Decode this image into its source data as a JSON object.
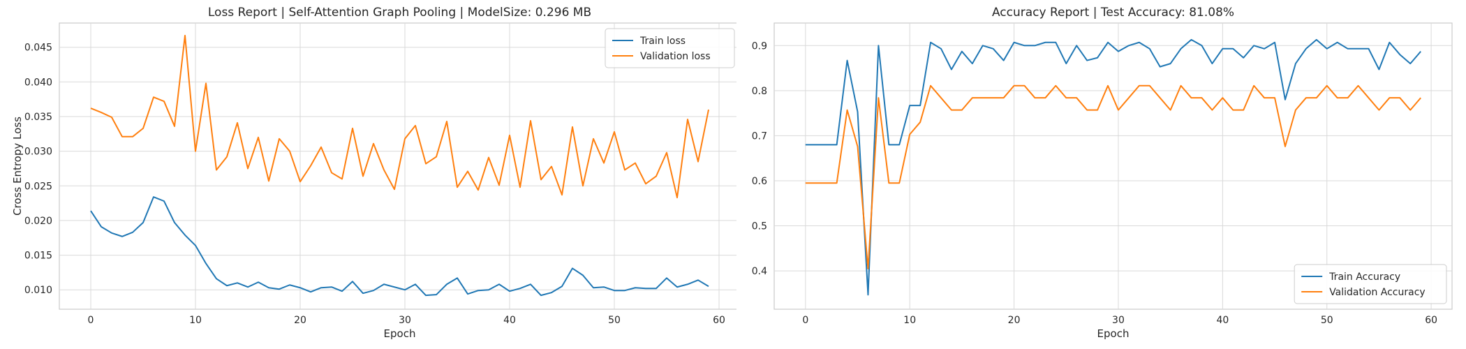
{
  "colors": {
    "train": "#1f77b4",
    "validation": "#ff7f0e"
  },
  "chart_data": [
    {
      "type": "line",
      "title": "Loss Report | Self-Attention Graph Pooling | ModelSize: 0.296 MB",
      "xlabel": "Epoch",
      "ylabel": "Cross Entropy Loss",
      "xlim": [
        -3,
        62
      ],
      "ylim": [
        0.0072,
        0.0485
      ],
      "xticks": [
        0,
        10,
        20,
        30,
        40,
        50,
        60
      ],
      "xtick_labels": [
        "0",
        "10",
        "20",
        "30",
        "40",
        "50",
        "60"
      ],
      "yticks": [
        0.01,
        0.015,
        0.02,
        0.025,
        0.03,
        0.035,
        0.04,
        0.045
      ],
      "ytick_labels": [
        "0.010",
        "0.015",
        "0.020",
        "0.025",
        "0.030",
        "0.035",
        "0.040",
        "0.045"
      ],
      "grid": true,
      "legend_position": "top-right",
      "x": [
        0,
        1,
        2,
        3,
        4,
        5,
        6,
        7,
        8,
        9,
        10,
        11,
        12,
        13,
        14,
        15,
        16,
        17,
        18,
        19,
        20,
        21,
        22,
        23,
        24,
        25,
        26,
        27,
        28,
        29,
        30,
        31,
        32,
        33,
        34,
        35,
        36,
        37,
        38,
        39,
        40,
        41,
        42,
        43,
        44,
        45,
        46,
        47,
        48,
        49,
        50,
        51,
        52,
        53,
        54,
        55,
        56,
        57,
        58,
        59
      ],
      "series": [
        {
          "name": "Train loss",
          "color_key": "train",
          "values": [
            0.0214,
            0.0191,
            0.0182,
            0.0177,
            0.0183,
            0.0197,
            0.0234,
            0.0228,
            0.0197,
            0.0179,
            0.0164,
            0.0138,
            0.0116,
            0.0106,
            0.011,
            0.0104,
            0.0111,
            0.0103,
            0.0101,
            0.0107,
            0.0103,
            0.0097,
            0.0103,
            0.0104,
            0.0098,
            0.0112,
            0.0095,
            0.0099,
            0.0108,
            0.0104,
            0.01,
            0.0108,
            0.0092,
            0.0093,
            0.0108,
            0.0117,
            0.0094,
            0.0099,
            0.01,
            0.0108,
            0.0098,
            0.0102,
            0.0108,
            0.0092,
            0.0096,
            0.0105,
            0.0131,
            0.0121,
            0.0103,
            0.0104,
            0.0099,
            0.0099,
            0.0103,
            0.0102,
            0.0102,
            0.0117,
            0.0104,
            0.0108,
            0.0114,
            0.0105
          ]
        },
        {
          "name": "Validation loss",
          "color_key": "validation",
          "values": [
            0.0362,
            0.0356,
            0.0349,
            0.0321,
            0.0321,
            0.0333,
            0.0378,
            0.0372,
            0.0336,
            0.0467,
            0.03,
            0.0398,
            0.0273,
            0.0292,
            0.0341,
            0.0275,
            0.032,
            0.0257,
            0.0318,
            0.03,
            0.0256,
            0.0279,
            0.0306,
            0.0269,
            0.026,
            0.0333,
            0.0264,
            0.0311,
            0.0273,
            0.0245,
            0.0318,
            0.0337,
            0.0282,
            0.0292,
            0.0343,
            0.0248,
            0.0271,
            0.0244,
            0.0291,
            0.0251,
            0.0323,
            0.0248,
            0.0344,
            0.0259,
            0.0278,
            0.0237,
            0.0335,
            0.025,
            0.0318,
            0.0283,
            0.0328,
            0.0273,
            0.0283,
            0.0253,
            0.0264,
            0.0298,
            0.0233,
            0.0346,
            0.0285,
            0.036
          ]
        }
      ]
    },
    {
      "type": "line",
      "title": "Accuracy Report | Test Accuracy: 81.08%",
      "xlabel": "Epoch",
      "ylabel": "",
      "xlim": [
        -3,
        62
      ],
      "ylim": [
        0.315,
        0.95
      ],
      "xticks": [
        0,
        10,
        20,
        30,
        40,
        50,
        60
      ],
      "xtick_labels": [
        "0",
        "10",
        "20",
        "30",
        "40",
        "50",
        "60"
      ],
      "yticks": [
        0.4,
        0.5,
        0.6,
        0.7,
        0.8,
        0.9
      ],
      "ytick_labels": [
        "0.4",
        "0.5",
        "0.6",
        "0.7",
        "0.8",
        "0.9"
      ],
      "grid": true,
      "legend_position": "bottom-right",
      "x": [
        0,
        1,
        2,
        3,
        4,
        5,
        6,
        7,
        8,
        9,
        10,
        11,
        12,
        13,
        14,
        15,
        16,
        17,
        18,
        19,
        20,
        21,
        22,
        23,
        24,
        25,
        26,
        27,
        28,
        29,
        30,
        31,
        32,
        33,
        34,
        35,
        36,
        37,
        38,
        39,
        40,
        41,
        42,
        43,
        44,
        45,
        46,
        47,
        48,
        49,
        50,
        51,
        52,
        53,
        54,
        55,
        56,
        57,
        58,
        59
      ],
      "series": [
        {
          "name": "Train Accuracy",
          "color_key": "train",
          "values": [
            0.68,
            0.68,
            0.68,
            0.68,
            0.867,
            0.753,
            0.347,
            0.9,
            0.68,
            0.68,
            0.767,
            0.767,
            0.907,
            0.893,
            0.847,
            0.887,
            0.86,
            0.9,
            0.893,
            0.867,
            0.907,
            0.9,
            0.9,
            0.907,
            0.907,
            0.86,
            0.9,
            0.867,
            0.873,
            0.907,
            0.887,
            0.9,
            0.907,
            0.893,
            0.853,
            0.86,
            0.893,
            0.913,
            0.9,
            0.86,
            0.893,
            0.893,
            0.873,
            0.9,
            0.893,
            0.907,
            0.78,
            0.86,
            0.893,
            0.913,
            0.893,
            0.907,
            0.893,
            0.893,
            0.893,
            0.847,
            0.907,
            0.88,
            0.86,
            0.887
          ]
        },
        {
          "name": "Validation Accuracy",
          "color_key": "validation",
          "values": [
            0.595,
            0.595,
            0.595,
            0.595,
            0.757,
            0.676,
            0.405,
            0.784,
            0.595,
            0.595,
            0.703,
            0.73,
            0.811,
            0.784,
            0.757,
            0.757,
            0.784,
            0.784,
            0.784,
            0.784,
            0.811,
            0.811,
            0.784,
            0.784,
            0.811,
            0.784,
            0.784,
            0.757,
            0.757,
            0.811,
            0.757,
            0.784,
            0.811,
            0.811,
            0.784,
            0.757,
            0.811,
            0.784,
            0.784,
            0.757,
            0.784,
            0.757,
            0.757,
            0.811,
            0.784,
            0.784,
            0.676,
            0.757,
            0.784,
            0.784,
            0.811,
            0.784,
            0.784,
            0.811,
            0.784,
            0.757,
            0.784,
            0.784,
            0.757,
            0.784
          ]
        }
      ]
    }
  ]
}
